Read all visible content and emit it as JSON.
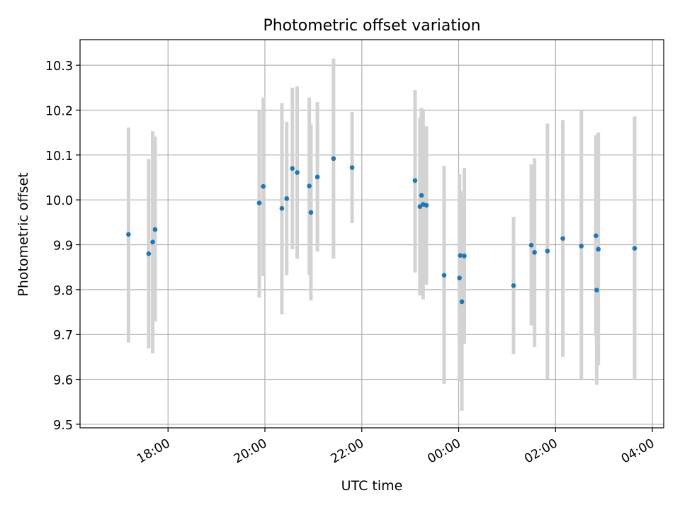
{
  "chart_data": {
    "type": "scatter",
    "title": "Photometric offset variation",
    "xlabel": "UTC time",
    "ylabel": "Photometric offset",
    "x_ticks": [
      "18:00",
      "20:00",
      "22:00",
      "00:00",
      "02:00",
      "04:00"
    ],
    "y_ticks": [
      "9.5",
      "9.6",
      "9.7",
      "9.8",
      "9.9",
      "10.0",
      "10.1",
      "10.2",
      "10.3"
    ],
    "grid": true,
    "colors": {
      "point": "#1f77b4",
      "errorbar": "#d3d3d3",
      "grid": "#b0b0b0"
    },
    "points": [
      {
        "x": "17:11",
        "y": 9.923,
        "lo": 9.682,
        "hi": 10.161
      },
      {
        "x": "17:36",
        "y": 9.88,
        "lo": 9.669,
        "hi": 10.091
      },
      {
        "x": "17:41",
        "y": 9.906,
        "lo": 9.658,
        "hi": 10.153
      },
      {
        "x": "17:44",
        "y": 9.934,
        "lo": 9.729,
        "hi": 10.141
      },
      {
        "x": "19:53",
        "y": 9.993,
        "lo": 9.782,
        "hi": 10.2
      },
      {
        "x": "19:58",
        "y": 10.03,
        "lo": 9.83,
        "hi": 10.228
      },
      {
        "x": "20:21",
        "y": 9.981,
        "lo": 9.745,
        "hi": 10.216
      },
      {
        "x": "20:27",
        "y": 10.003,
        "lo": 9.832,
        "hi": 10.174
      },
      {
        "x": "20:34",
        "y": 10.07,
        "lo": 9.89,
        "hi": 10.25
      },
      {
        "x": "20:40",
        "y": 10.061,
        "lo": 9.869,
        "hi": 10.253
      },
      {
        "x": "20:55",
        "y": 10.031,
        "lo": 9.833,
        "hi": 10.228
      },
      {
        "x": "20:57",
        "y": 9.972,
        "lo": 9.776,
        "hi": 10.168
      },
      {
        "x": "21:05",
        "y": 10.051,
        "lo": 9.885,
        "hi": 10.218
      },
      {
        "x": "21:25",
        "y": 10.092,
        "lo": 9.869,
        "hi": 10.315
      },
      {
        "x": "21:48",
        "y": 10.072,
        "lo": 9.948,
        "hi": 10.196
      },
      {
        "x": "23:06",
        "y": 10.043,
        "lo": 9.838,
        "hi": 10.245
      },
      {
        "x": "23:12",
        "y": 9.985,
        "lo": 9.787,
        "hi": 10.184
      },
      {
        "x": "23:14",
        "y": 10.01,
        "lo": 9.822,
        "hi": 10.205
      },
      {
        "x": "23:16",
        "y": 9.99,
        "lo": 9.778,
        "hi": 10.202
      },
      {
        "x": "23:20",
        "y": 9.988,
        "lo": 9.811,
        "hi": 10.164
      },
      {
        "x": "23:42",
        "y": 9.832,
        "lo": 9.59,
        "hi": 10.076
      },
      {
        "x": "00:01",
        "y": 9.826,
        "lo": 9.596,
        "hi": 10.057
      },
      {
        "x": "00:02",
        "y": 9.876,
        "lo": 9.65,
        "hi": 10.02
      },
      {
        "x": "00:04",
        "y": 9.773,
        "lo": 9.53,
        "hi": 10.017
      },
      {
        "x": "00:07",
        "y": 9.875,
        "lo": 9.679,
        "hi": 10.071
      },
      {
        "x": "01:08",
        "y": 9.809,
        "lo": 9.656,
        "hi": 9.962
      },
      {
        "x": "01:30",
        "y": 9.899,
        "lo": 9.72,
        "hi": 10.079
      },
      {
        "x": "01:34",
        "y": 9.883,
        "lo": 9.672,
        "hi": 10.093
      },
      {
        "x": "01:50",
        "y": 9.886,
        "lo": 9.601,
        "hi": 10.17
      },
      {
        "x": "02:09",
        "y": 9.914,
        "lo": 9.65,
        "hi": 10.178
      },
      {
        "x": "02:32",
        "y": 9.897,
        "lo": 9.598,
        "hi": 10.2
      },
      {
        "x": "02:50",
        "y": 9.92,
        "lo": 9.695,
        "hi": 10.144
      },
      {
        "x": "02:51",
        "y": 9.799,
        "lo": 9.588,
        "hi": 10.01
      },
      {
        "x": "02:53",
        "y": 9.89,
        "lo": 9.632,
        "hi": 10.15
      },
      {
        "x": "03:38",
        "y": 9.892,
        "lo": 9.6,
        "hi": 10.186
      }
    ]
  }
}
